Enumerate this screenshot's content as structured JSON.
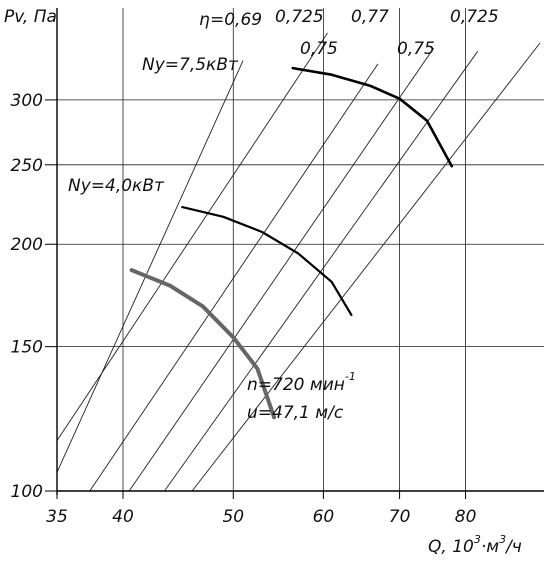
{
  "chart_data": {
    "type": "line",
    "xlabel": "Q, 10",
    "xlabel_exp": "3",
    "xlabel_unit_tail": "·м",
    "xlabel_unit_exp": "3",
    "xlabel_unit_end": "/ч",
    "ylabel": "Pv, Па",
    "x_scale": "log",
    "y_scale": "log",
    "xlim": [
      35,
      93
    ],
    "ylim": [
      100,
      360
    ],
    "x_ticks": [
      35,
      40,
      50,
      60,
      70,
      80
    ],
    "y_ticks": [
      100,
      150,
      200,
      250,
      300
    ],
    "grid": true,
    "series": [
      {
        "name": "Ny=7,5кВт",
        "color": "#000000",
        "points": [
          [
            56.4,
            328
          ],
          [
            61,
            322
          ],
          [
            66,
            312
          ],
          [
            70,
            301
          ],
          [
            74,
            283
          ],
          [
            77.8,
            249
          ]
        ]
      },
      {
        "name": "Ny=4,0кВт",
        "color": "#000000",
        "points": [
          [
            45.1,
            222
          ],
          [
            49,
            216
          ],
          [
            53,
            207
          ],
          [
            57,
            195
          ],
          [
            61,
            180
          ],
          [
            63.5,
            164
          ]
        ]
      },
      {
        "name": "n=720 мин⁻¹",
        "color": "#666666",
        "points": [
          [
            40.7,
            186
          ],
          [
            44,
            178
          ],
          [
            47,
            168
          ],
          [
            50,
            154
          ],
          [
            52.5,
            141
          ],
          [
            54.3,
            123
          ]
        ]
      }
    ],
    "efficiency_lines": [
      {
        "label": "0,69",
        "points": [
          [
            35,
            105.4
          ],
          [
            51,
            335
          ]
        ]
      },
      {
        "label": "0,725",
        "points": [
          [
            35,
            115.2
          ],
          [
            60.5,
            362
          ]
        ]
      },
      {
        "label": "0,75",
        "points": [
          [
            37.4,
            100
          ],
          [
            67,
            332
          ]
        ]
      },
      {
        "label": "0,77",
        "points": [
          [
            40.5,
            100
          ],
          [
            75,
            347
          ]
        ]
      },
      {
        "label": "0,75",
        "points": [
          [
            43.5,
            100
          ],
          [
            82,
            344
          ]
        ]
      },
      {
        "label": "0,725",
        "points": [
          [
            46,
            100
          ],
          [
            93,
            352
          ]
        ]
      }
    ],
    "annotations": {
      "eta_symbol": "η",
      "eta_values": [
        "=0,69",
        "0,725",
        "0,77",
        "0,725"
      ],
      "eta_values_lower": [
        "0,75",
        "0,75"
      ],
      "curve_label_1": "Ny=7,5кВт",
      "curve_label_2": "Ny=4,0кВт",
      "speed_label": "n=720 мин",
      "speed_label_exp": "-1",
      "velocity_label": "u=47,1 м/с"
    }
  }
}
